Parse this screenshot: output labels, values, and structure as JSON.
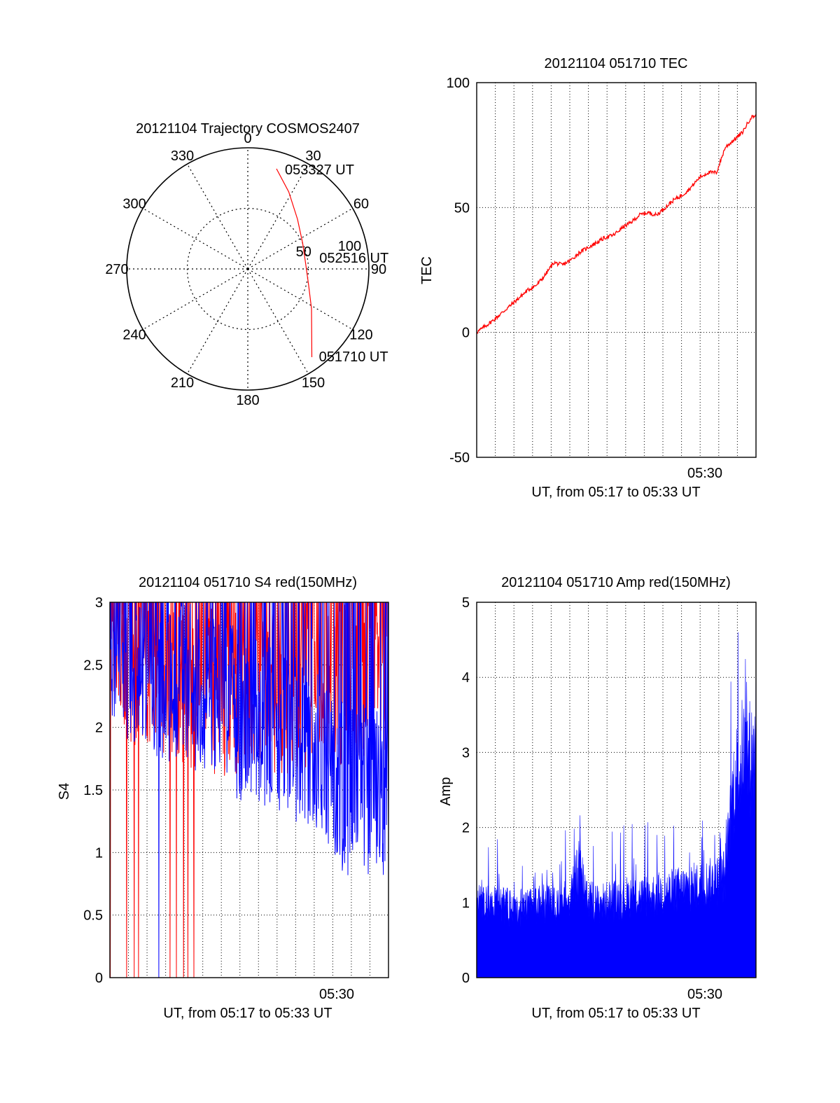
{
  "colors": {
    "red": "#ff0000",
    "blue": "#0000ff",
    "axis": "#000000"
  },
  "chart_data": [
    {
      "type": "polar",
      "title": "20121104 Trajectory COSMOS2407",
      "angle_labels": [
        "0",
        "30",
        "60",
        "90",
        "120",
        "150",
        "180",
        "210",
        "240",
        "270",
        "300",
        "330"
      ],
      "radius_labels": [
        "50",
        "100"
      ],
      "rlim": [
        0,
        100
      ],
      "grid": true,
      "trajectory": {
        "color": "red",
        "points": [
          {
            "az": 16,
            "r": 86
          },
          {
            "az": 28,
            "r": 72
          },
          {
            "az": 45,
            "r": 58
          },
          {
            "az": 65,
            "r": 50
          },
          {
            "az": 85,
            "r": 48
          },
          {
            "az": 105,
            "r": 52
          },
          {
            "az": 122,
            "r": 62
          },
          {
            "az": 136,
            "r": 76
          },
          {
            "az": 144,
            "r": 90
          }
        ]
      },
      "annotations": [
        {
          "text": "053327 UT",
          "az": 22,
          "r": 88
        },
        {
          "text": "052516 UT",
          "az": 82,
          "r": 62
        },
        {
          "text": "051710 UT",
          "az": 140,
          "r": 95
        }
      ]
    },
    {
      "type": "line",
      "title": "20121104 051710 TEC",
      "xlabel": "UT, from 05:17 to 05:33 UT",
      "ylabel": "TEC",
      "xlim": [
        "05:17:10",
        "05:33:27"
      ],
      "ylim": [
        -50,
        100
      ],
      "yticks": [
        -50,
        0,
        50,
        100
      ],
      "xtick_label": "05:30",
      "grid": true,
      "series": [
        {
          "color": "red",
          "x_min": [
            0,
            1,
            1.5,
            2,
            2.5,
            3,
            3.5,
            4,
            4.5,
            5,
            5.5,
            6,
            6.5,
            7,
            7.5,
            8,
            8.5,
            9,
            9.5,
            10,
            10.5,
            11,
            11.5,
            12,
            12.5,
            13,
            13.5,
            14,
            14.5,
            15,
            15.5,
            16,
            16.3
          ],
          "values": [
            0,
            5,
            8,
            11,
            14,
            17,
            19,
            23,
            28,
            27,
            29,
            32,
            34,
            36,
            38,
            39,
            42,
            44,
            47,
            48,
            47,
            50,
            53,
            55,
            58,
            62,
            64,
            64,
            74,
            77,
            80,
            86,
            87
          ]
        }
      ]
    },
    {
      "type": "line",
      "title": "20121104 051710 S4 red(150MHz)",
      "xlabel": "UT, from 05:17 to 05:33 UT",
      "ylabel": "S4",
      "xlim": [
        "05:17:10",
        "05:33:27"
      ],
      "ylim": [
        0,
        3
      ],
      "yticks": [
        0,
        0.5,
        1,
        1.5,
        2,
        2.5,
        3
      ],
      "xtick_label": "05:30",
      "grid": true,
      "series": [
        {
          "color": "red",
          "x_min": [
            0,
            2,
            4,
            6,
            8,
            10,
            12,
            13,
            14,
            15,
            16.3
          ],
          "values": [
            2.8,
            2.6,
            2.5,
            2.4,
            2.4,
            2.4,
            2.5,
            2.5,
            2.5,
            2.5,
            2.6
          ]
        },
        {
          "color": "blue",
          "x_min": [
            0,
            2,
            4,
            6,
            8,
            10,
            12,
            13,
            14,
            15,
            16.3
          ],
          "values": [
            2.6,
            2.5,
            2.4,
            2.2,
            2.1,
            2.0,
            1.8,
            1.6,
            1.5,
            1.5,
            1.4
          ]
        }
      ]
    },
    {
      "type": "area",
      "title": "20121104 051710 Amp red(150MHz)",
      "xlabel": "UT, from 05:17 to 05:33 UT",
      "ylabel": "Amp",
      "xlim": [
        "05:17:10",
        "05:33:27"
      ],
      "ylim": [
        0,
        5
      ],
      "yticks": [
        0,
        1,
        2,
        3,
        4,
        5
      ],
      "xtick_label": "05:30",
      "grid": true,
      "series": [
        {
          "color": "blue",
          "x_min": [
            0,
            1,
            2,
            3,
            4,
            5,
            5.5,
            6,
            6.5,
            7,
            8,
            9,
            10,
            11,
            12,
            13,
            14,
            14.5,
            15,
            15.5,
            16,
            16.3
          ],
          "values": [
            1.1,
            1.0,
            0.95,
            0.95,
            1.0,
            1.0,
            1.1,
            1.5,
            1.1,
            1.0,
            1.05,
            1.1,
            1.1,
            1.15,
            1.2,
            1.25,
            1.3,
            1.4,
            2.6,
            3.0,
            3.0,
            3.0
          ]
        }
      ]
    }
  ]
}
